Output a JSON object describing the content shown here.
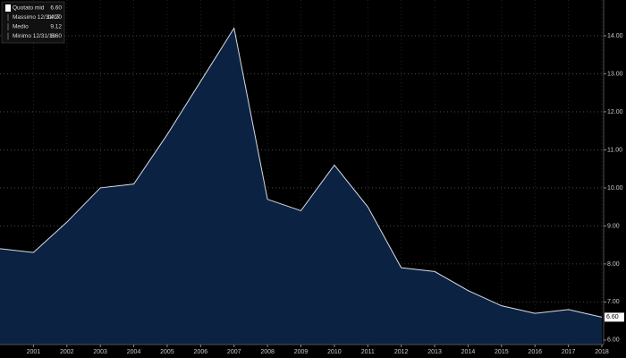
{
  "chart_data": {
    "type": "area",
    "categories": [
      null,
      "2001",
      "2002",
      "2003",
      "2004",
      "2005",
      "2006",
      "2007",
      "2008",
      "2009",
      "2010",
      "2011",
      "2012",
      "2013",
      "2014",
      "2015",
      "2016",
      "2017",
      "2018"
    ],
    "series": [
      {
        "name": "Quotato mid",
        "color": "#d8dde6",
        "fill": "#0b2242",
        "values": [
          8.4,
          8.3,
          9.1,
          10.0,
          10.1,
          11.4,
          12.8,
          14.2,
          9.7,
          9.4,
          10.6,
          9.5,
          7.9,
          7.8,
          7.3,
          6.9,
          6.7,
          6.8,
          6.6
        ],
        "value_labels": [
          null,
          null,
          null,
          null,
          null,
          null,
          null,
          null,
          null,
          null,
          null,
          null,
          null,
          null,
          null,
          null,
          null,
          null,
          "6.60"
        ]
      }
    ],
    "legend_items": [
      {
        "name": "Quotato mid",
        "value": "6.60"
      },
      {
        "name": "Massimo 12/31/07",
        "value": "14.20"
      },
      {
        "name": "Medio",
        "value": "9.12"
      },
      {
        "name": "Minimo 12/31/18",
        "value": "6.60"
      }
    ],
    "ylim": [
      5.88,
      14.94
    ],
    "yticks": [
      {
        "value": 6,
        "label": "6.00"
      },
      {
        "value": 7,
        "label": "7.00"
      },
      {
        "value": 8,
        "label": "8.00"
      },
      {
        "value": 9,
        "label": "9.00"
      },
      {
        "value": 10,
        "label": "10.00"
      },
      {
        "value": 11,
        "label": "11.00"
      },
      {
        "value": 12,
        "label": "12.00"
      },
      {
        "value": 13,
        "label": "13.00"
      },
      {
        "value": 14,
        "label": "14.00"
      }
    ],
    "grid": true
  }
}
